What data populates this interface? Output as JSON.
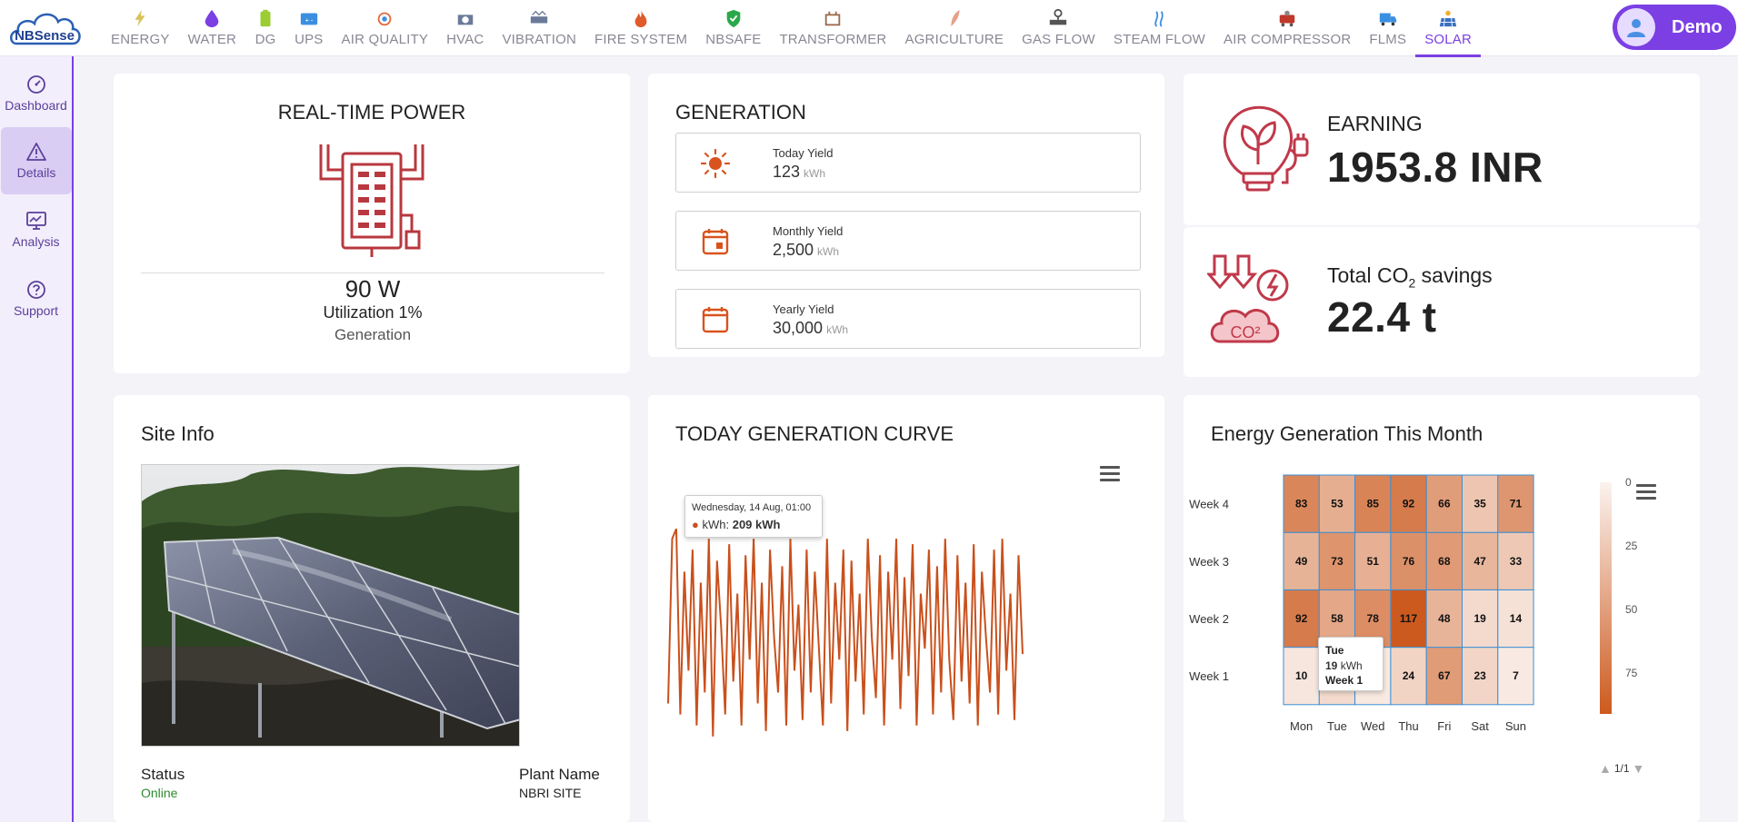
{
  "brand": {
    "logo_text": "NBSense"
  },
  "nav": [
    {
      "label": "ENERGY",
      "icon": "lightning-icon",
      "color": "#d9c25a"
    },
    {
      "label": "WATER",
      "icon": "water-drop-icon",
      "color": "#7b3fe4"
    },
    {
      "label": "DG",
      "icon": "battery-icon",
      "color": "#9acd32"
    },
    {
      "label": "UPS",
      "icon": "ups-battery-icon",
      "color": "#3b8fe0"
    },
    {
      "label": "AIR QUALITY",
      "icon": "air-quality-icon",
      "color": "#e06a3b"
    },
    {
      "label": "HVAC",
      "icon": "hvac-icon",
      "color": "#6b7a99"
    },
    {
      "label": "VIBRATION",
      "icon": "vibration-icon",
      "color": "#6b7a99"
    },
    {
      "label": "FIRE SYSTEM",
      "icon": "fire-icon",
      "color": "#e05a2b"
    },
    {
      "label": "NBSAFE",
      "icon": "shield-icon",
      "color": "#2aa84a"
    },
    {
      "label": "TRANSFORMER",
      "icon": "transformer-icon",
      "color": "#9c6b4a"
    },
    {
      "label": "AGRICULTURE",
      "icon": "leaf-icon",
      "color": "#e6a089"
    },
    {
      "label": "GAS FLOW",
      "icon": "gas-valve-icon",
      "color": "#555555"
    },
    {
      "label": "STEAM FLOW",
      "icon": "steam-icon",
      "color": "#3b8fe0"
    },
    {
      "label": "AIR COMPRESSOR",
      "icon": "compressor-icon",
      "color": "#c0392b"
    },
    {
      "label": "FLMS",
      "icon": "truck-icon",
      "color": "#3b8fe0"
    },
    {
      "label": "SOLAR",
      "icon": "solar-panel-icon",
      "color": "#e06a3b",
      "active": true
    }
  ],
  "user": {
    "name": "Demo"
  },
  "sidebar": [
    {
      "label": "Dashboard",
      "icon": "dashboard-gauge-icon"
    },
    {
      "label": "Details",
      "icon": "warning-triangle-icon",
      "active": true
    },
    {
      "label": "Analysis",
      "icon": "monitor-chart-icon"
    },
    {
      "label": "Support",
      "icon": "help-circle-icon"
    }
  ],
  "realtime": {
    "title": "REAL-TIME POWER",
    "power": "90 W",
    "utilization": "Utilization 1%",
    "caption": "Generation"
  },
  "generation": {
    "title": "GENERATION",
    "items": [
      {
        "label": "Today Yield",
        "value": "123",
        "unit": "kWh",
        "icon": "sun-icon"
      },
      {
        "label": "Monthly Yield",
        "value": "2,500",
        "unit": "kWh",
        "icon": "calendar-day-icon"
      },
      {
        "label": "Yearly Yield",
        "value": "30,000",
        "unit": "kWh",
        "icon": "calendar-icon"
      }
    ]
  },
  "earning": {
    "label": "EARNING",
    "value": "1953.8 INR"
  },
  "co2": {
    "label_prefix": "Total CO",
    "label_sub": "2",
    "label_suffix": " savings",
    "value": "22.4 t"
  },
  "site": {
    "title": "Site Info",
    "status_label": "Status",
    "status_value": "Online",
    "plant_label": "Plant Name",
    "plant_value": "NBRI SITE"
  },
  "curve": {
    "title": "TODAY GENERATION CURVE",
    "tooltip_date": "Wednesday, 14 Aug, 01:00",
    "tooltip_series": "kWh: ",
    "tooltip_value": "209 kWh"
  },
  "heatmap": {
    "title": "Energy Generation This Month",
    "tooltip_day": "Tue",
    "tooltip_value": "19",
    "tooltip_unit": " kWh",
    "tooltip_week": "Week 1",
    "legend_page": "1/1"
  },
  "chart_data": [
    {
      "type": "line",
      "series": [
        {
          "name": "kWh",
          "values": [
            50,
            200,
            209,
            40,
            170,
            80,
            190,
            30,
            160,
            60,
            200,
            20,
            180,
            120,
            40,
            195,
            70,
            150,
            30,
            185,
            90,
            200,
            50,
            160,
            25,
            190,
            110,
            60,
            175,
            30,
            200,
            80,
            140,
            35,
            190,
            60,
            170,
            100,
            30,
            200,
            50,
            160,
            90,
            190,
            25,
            180,
            70,
            150,
            40,
            200,
            110,
            55,
            185,
            30,
            170,
            90,
            200,
            45,
            165,
            75,
            195,
            30,
            150,
            100,
            190,
            40,
            175,
            60,
            200,
            90,
            35,
            185,
            70,
            160,
            50,
            195,
            30,
            170,
            110,
            60,
            190,
            40,
            200,
            80,
            150,
            35,
            185,
            95
          ]
        }
      ],
      "ylim": [
        0,
        215
      ]
    },
    {
      "type": "heatmap",
      "x_categories": [
        "Mon",
        "Tue",
        "Wed",
        "Thu",
        "Fri",
        "Sat",
        "Sun"
      ],
      "y_categories": [
        "Week 1",
        "Week 2",
        "Week 3",
        "Week 4"
      ],
      "values": [
        [
          10,
          19,
          8,
          24,
          67,
          23,
          7
        ],
        [
          92,
          58,
          78,
          117,
          48,
          19,
          14
        ],
        [
          49,
          73,
          51,
          76,
          68,
          47,
          33
        ],
        [
          83,
          53,
          85,
          92,
          66,
          35,
          71
        ]
      ],
      "color_axis": {
        "ticks": [
          0,
          25,
          50,
          75
        ],
        "min_color": "#fbf3ef",
        "max_color": "#cc5a1e"
      }
    }
  ]
}
